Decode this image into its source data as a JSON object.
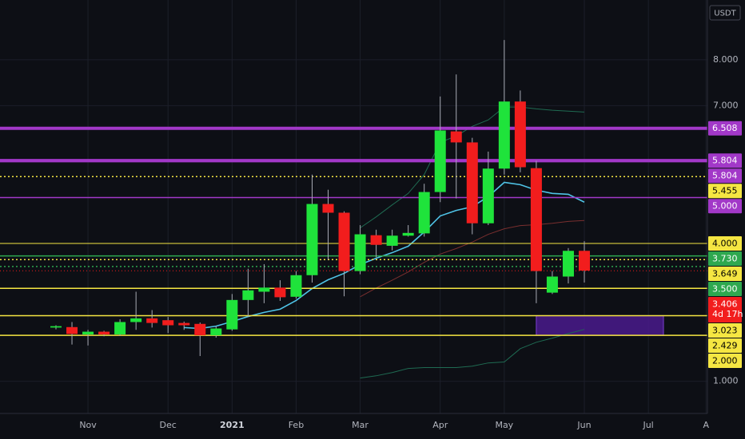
{
  "chart_data": {
    "type": "candlestick",
    "currency": "USDT",
    "ylim": [
      0.3,
      9.3
    ],
    "yticks": [
      {
        "value": 1,
        "label": "1.000"
      },
      {
        "value": 7,
        "label": "7.000"
      },
      {
        "value": 8,
        "label": "8.000"
      }
    ],
    "grid": true,
    "categories": [
      null,
      null,
      "Nov",
      null,
      null,
      null,
      null,
      "Dec",
      null,
      null,
      null,
      "2021",
      null,
      null,
      null,
      "Feb",
      null,
      null,
      null,
      "Mar",
      null,
      null,
      null,
      null,
      "Apr",
      null,
      null,
      null,
      "May",
      null,
      null,
      null,
      null,
      "Jun"
    ],
    "future_categories": [
      "Jul",
      "A"
    ],
    "up_color": "#1fe33b",
    "down_color": "#f21d1d",
    "open": [
      2.17,
      2.18,
      2.02,
      2.08,
      2.02,
      2.29,
      2.37,
      2.33,
      2.27,
      2.25,
      2.0,
      2.13,
      2.77,
      2.95,
      3.04,
      2.84,
      3.31,
      4.86,
      4.67,
      3.4,
      4.18,
      3.95,
      4.17,
      4.22,
      5.12,
      6.44,
      6.2,
      4.44,
      5.63,
      7.09,
      5.64,
      2.93,
      3.28,
      3.84
    ],
    "high": [
      2.22,
      2.29,
      2.12,
      2.1,
      2.35,
      2.95,
      2.55,
      2.4,
      2.3,
      2.28,
      2.2,
      2.9,
      3.45,
      3.55,
      3.2,
      3.4,
      5.5,
      5.17,
      4.7,
      4.4,
      4.3,
      4.3,
      4.4,
      5.3,
      7.2,
      7.68,
      6.3,
      6.0,
      8.43,
      7.33,
      5.8,
      3.4,
      3.9,
      4.05
    ],
    "low": [
      2.13,
      1.8,
      1.78,
      1.98,
      1.99,
      2.12,
      2.17,
      2.05,
      2.12,
      1.55,
      1.95,
      2.1,
      2.4,
      2.7,
      2.75,
      2.8,
      3.15,
      3.65,
      2.85,
      3.33,
      3.7,
      3.85,
      4.15,
      4.15,
      4.9,
      4.98,
      4.2,
      4.4,
      5.5,
      5.55,
      2.7,
      2.9,
      3.13,
      3.15
    ],
    "close": [
      2.2,
      2.03,
      2.08,
      2.02,
      2.29,
      2.37,
      2.27,
      2.22,
      2.22,
      2.0,
      2.15,
      2.77,
      2.98,
      3.04,
      2.83,
      3.31,
      4.86,
      4.67,
      3.4,
      4.2,
      3.97,
      4.17,
      4.23,
      5.12,
      6.46,
      6.2,
      4.44,
      5.63,
      7.09,
      5.66,
      3.4,
      3.28,
      3.84,
      3.41
    ],
    "overlays": [
      {
        "color": "#4fc3e6",
        "values": [
          null,
          null,
          null,
          null,
          null,
          null,
          null,
          null,
          2.17,
          2.15,
          2.2,
          2.3,
          2.41,
          2.5,
          2.57,
          2.76,
          3.02,
          3.21,
          3.35,
          3.54,
          3.68,
          3.8,
          3.94,
          4.25,
          4.6,
          4.72,
          4.8,
          5.02,
          5.33,
          5.28,
          5.16,
          5.09,
          5.07,
          4.9
        ]
      },
      {
        "color": "#7a2f2f",
        "values": [
          null,
          null,
          null,
          null,
          null,
          null,
          null,
          null,
          null,
          null,
          null,
          null,
          null,
          null,
          null,
          null,
          null,
          null,
          null,
          2.84,
          3.03,
          3.2,
          3.38,
          3.59,
          3.77,
          3.89,
          4.03,
          4.2,
          4.32,
          4.39,
          4.41,
          4.44,
          4.48,
          4.5
        ]
      },
      {
        "color": "#1f6b52",
        "values": [
          null,
          null,
          null,
          null,
          null,
          null,
          null,
          null,
          null,
          null,
          null,
          null,
          null,
          null,
          null,
          null,
          null,
          null,
          null,
          4.34,
          4.58,
          4.84,
          5.09,
          5.5,
          6.2,
          6.34,
          6.55,
          6.69,
          6.97,
          6.97,
          6.93,
          6.9,
          6.88,
          6.86
        ]
      },
      {
        "color": "#1f6b52",
        "values": [
          null,
          null,
          null,
          null,
          null,
          null,
          null,
          null,
          null,
          null,
          null,
          null,
          null,
          null,
          null,
          null,
          null,
          null,
          null,
          1.07,
          1.12,
          1.19,
          1.28,
          1.3,
          1.3,
          1.3,
          1.33,
          1.4,
          1.42,
          1.71,
          1.85,
          1.94,
          2.04,
          2.13
        ]
      }
    ],
    "zone": {
      "low": 2.0,
      "high": 2.429,
      "color": "#4a1a8c"
    },
    "price_lines": [
      {
        "value": 6.508,
        "color": "#a238c8",
        "width": 4,
        "text_color": "#ffffff"
      },
      {
        "value": 5.804,
        "color": "#a238c8",
        "width": 4,
        "text_color": "#ffffff"
      },
      {
        "value": 5.804,
        "color": "#a238c8",
        "width": 4,
        "text_color": "#ffffff"
      },
      {
        "value": 5.455,
        "color": "#f5e642",
        "width": 1.5,
        "dash": "2 3",
        "text_color": "#000000"
      },
      {
        "value": 5,
        "label": "5.000",
        "color": "#a238c8",
        "width": 1.5,
        "text_color": "#ffffff"
      },
      {
        "value": 4,
        "label": "4.000",
        "color": "#f5e642",
        "width": 1,
        "text_color": "#000000"
      },
      {
        "value": 3.73,
        "label": "3.730",
        "color": "#2ea84f",
        "width": 1.5,
        "text_color": "#ffffff"
      },
      {
        "value": 3.649,
        "color": "#f5e642",
        "width": 1.5,
        "dash": "2 3",
        "text_color": "#000000"
      },
      {
        "value": 3.5,
        "label": "3.500",
        "color": "#2ea84f",
        "width": 1.5,
        "dash": "2 3",
        "text_color": "#ffffff"
      },
      {
        "value": 3.406,
        "color": "#f21d1d",
        "width": 1,
        "dash": "1 3",
        "text_color": "#ffffff",
        "countdown": "4d 17h"
      },
      {
        "value": 3.023,
        "color": "#f5e642",
        "width": 1.5,
        "text_color": "#000000"
      },
      {
        "value": 2.429,
        "color": "#f5e642",
        "width": 1.5,
        "text_color": "#000000"
      },
      {
        "value": 2,
        "label": "2.000",
        "color": "#f5e642",
        "width": 1.5,
        "text_color": "#000000"
      }
    ]
  }
}
